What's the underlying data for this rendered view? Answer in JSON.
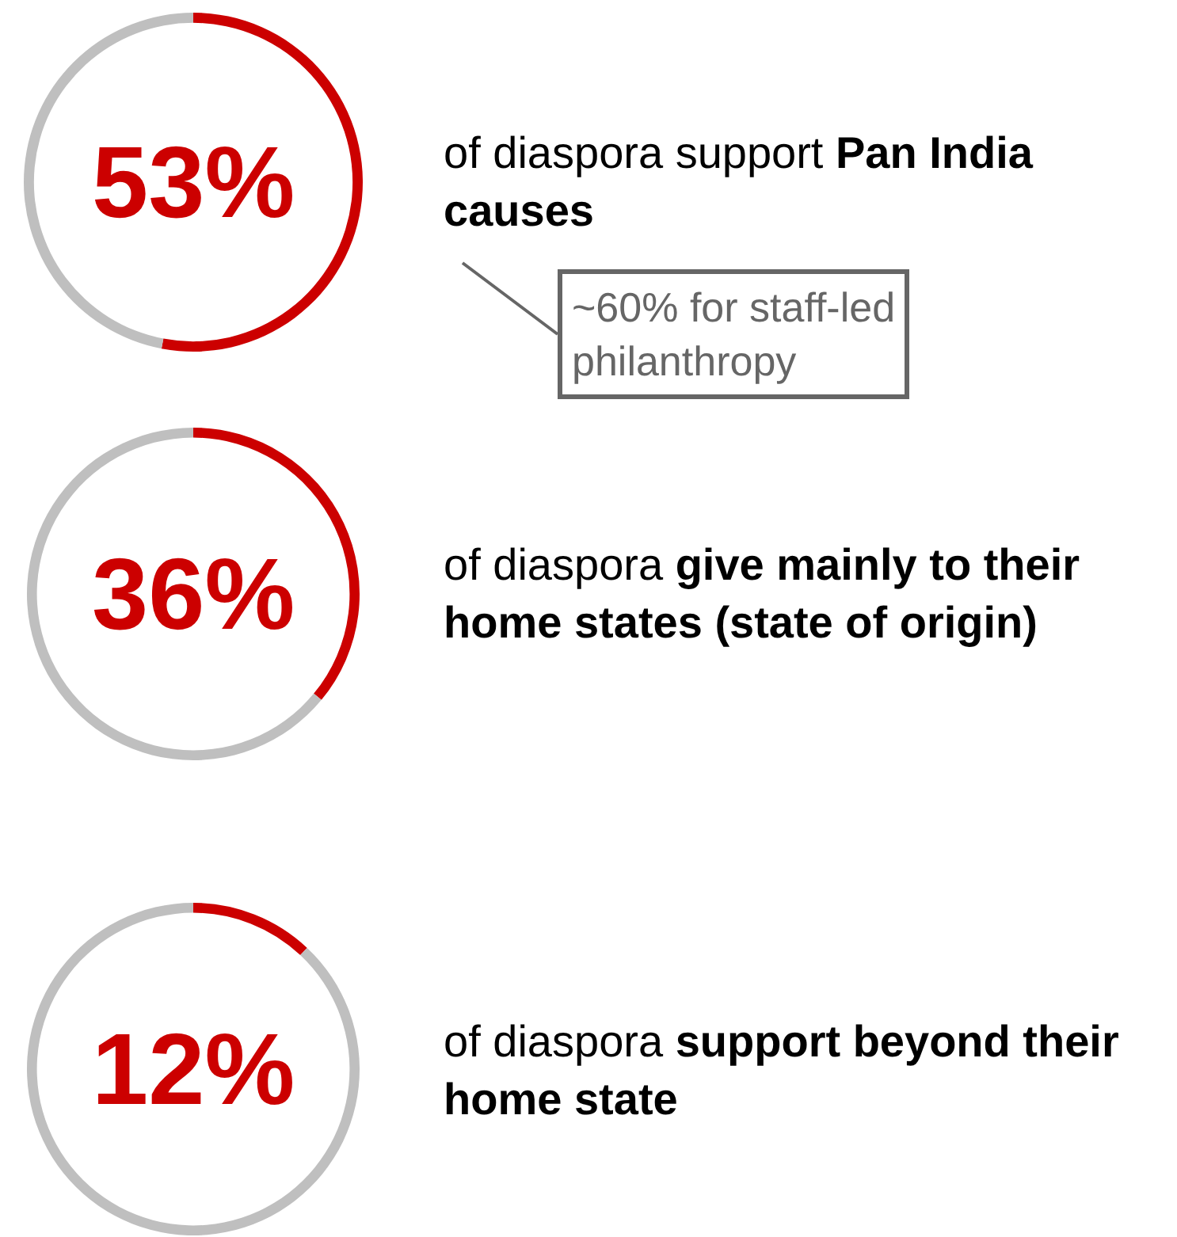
{
  "chart_data": [
    {
      "type": "donut",
      "categories": [
        null,
        null
      ],
      "values": [
        53,
        47
      ],
      "colors": [
        "#cc0000",
        "#bfbfbf"
      ],
      "annotations": [
        "53%",
        "of diaspora support",
        "Pan India causes",
        {
          "text": "~60% for staff-led philanthropy"
        }
      ]
    },
    {
      "type": "donut",
      "categories": [
        null,
        null
      ],
      "values": [
        36,
        64
      ],
      "colors": [
        "#cc0000",
        "#bfbfbf"
      ],
      "annotations": [
        "36%",
        "of diaspora",
        "give mainly to their home states (state of origin)"
      ]
    },
    {
      "type": "donut",
      "categories": [
        null,
        null
      ],
      "values": [
        12,
        88
      ],
      "colors": [
        "#cc0000",
        "#bfbfbf"
      ],
      "annotations": [
        "12%",
        "of diaspora",
        "support beyond their home state"
      ]
    }
  ]
}
